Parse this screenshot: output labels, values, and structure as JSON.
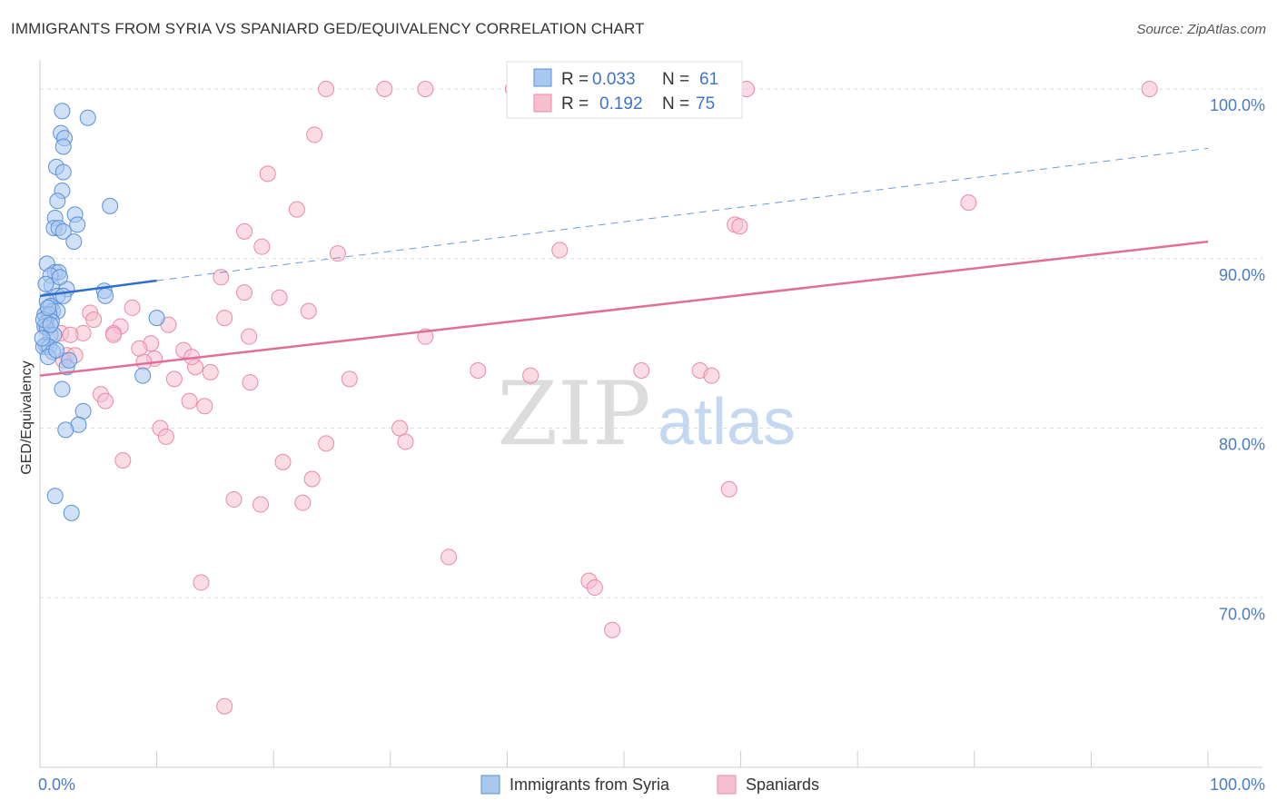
{
  "title": "IMMIGRANTS FROM SYRIA VS SPANIARD GED/EQUIVALENCY CORRELATION CHART",
  "source": "Source: ZipAtlas.com",
  "watermark": {
    "zip": "ZIP",
    "atlas": "atlas"
  },
  "colors": {
    "syria_fill": "#a9c8f0",
    "syria_stroke": "#5a8fd8",
    "syria_line": "#2f6fcc",
    "spain_fill": "#f7bfd0",
    "spain_stroke": "#e88aa8",
    "spain_line": "#e06f98",
    "tick_label": "#4a7cc7",
    "grid": "#dddddd"
  },
  "legend": {
    "r_label": "R =",
    "n_label": "N =",
    "rows": [
      {
        "r": "0.033",
        "n": "61"
      },
      {
        "r": "0.192",
        "n": "75"
      }
    ]
  },
  "chart_data": {
    "type": "scatter",
    "title": "IMMIGRANTS FROM SYRIA VS SPANIARD GED/EQUIVALENCY CORRELATION CHART",
    "xlabel": "",
    "ylabel": "GED/Equivalency",
    "xlim": [
      0,
      100
    ],
    "ylim": [
      60,
      101.5
    ],
    "x_tick_labels": [
      "0.0%",
      "100.0%"
    ],
    "y_ticks": [
      70,
      80,
      90,
      100
    ],
    "y_tick_labels": [
      "70.0%",
      "80.0%",
      "90.0%",
      "100.0%"
    ],
    "grid": true,
    "legend_position": "top-center",
    "series": [
      {
        "name": "Immigrants from Syria",
        "r": 0.033,
        "n": 61,
        "trend": {
          "x": [
            0,
            10
          ],
          "y": [
            87.8,
            88.7
          ],
          "dashed_to": [
            100,
            96.5
          ]
        },
        "points": [
          [
            1.9,
            98.7
          ],
          [
            4.1,
            98.3
          ],
          [
            1.8,
            97.4
          ],
          [
            2.1,
            97.1
          ],
          [
            2.0,
            96.6
          ],
          [
            1.4,
            95.4
          ],
          [
            2.0,
            95.1
          ],
          [
            1.9,
            94.0
          ],
          [
            1.5,
            93.4
          ],
          [
            6.0,
            93.1
          ],
          [
            3.0,
            92.6
          ],
          [
            1.3,
            92.4
          ],
          [
            3.2,
            92.0
          ],
          [
            1.2,
            91.8
          ],
          [
            1.6,
            91.8
          ],
          [
            2.0,
            91.6
          ],
          [
            2.9,
            91.0
          ],
          [
            0.6,
            89.7
          ],
          [
            1.3,
            89.2
          ],
          [
            1.6,
            89.2
          ],
          [
            0.9,
            89.0
          ],
          [
            1.0,
            88.4
          ],
          [
            0.5,
            88.5
          ],
          [
            2.3,
            88.2
          ],
          [
            5.5,
            88.1
          ],
          [
            1.5,
            87.8
          ],
          [
            2.0,
            87.8
          ],
          [
            5.6,
            87.8
          ],
          [
            0.6,
            87.5
          ],
          [
            0.9,
            87.2
          ],
          [
            1.1,
            86.9
          ],
          [
            1.5,
            86.9
          ],
          [
            0.4,
            86.7
          ],
          [
            0.8,
            86.7
          ],
          [
            1.0,
            86.3
          ],
          [
            0.5,
            86.2
          ],
          [
            0.4,
            86.0
          ],
          [
            10.0,
            86.5
          ],
          [
            0.6,
            85.9
          ],
          [
            0.9,
            85.5
          ],
          [
            1.2,
            85.5
          ],
          [
            0.5,
            84.9
          ],
          [
            0.3,
            84.8
          ],
          [
            0.8,
            84.8
          ],
          [
            1.1,
            84.5
          ],
          [
            0.7,
            84.2
          ],
          [
            2.3,
            83.6
          ],
          [
            8.8,
            83.1
          ],
          [
            1.9,
            82.3
          ],
          [
            3.7,
            81.0
          ],
          [
            3.3,
            80.2
          ],
          [
            2.2,
            79.9
          ],
          [
            1.3,
            76.0
          ],
          [
            2.7,
            75.0
          ],
          [
            0.3,
            86.4
          ],
          [
            1.4,
            84.6
          ],
          [
            0.7,
            87.1
          ],
          [
            1.7,
            88.9
          ],
          [
            0.2,
            85.3
          ],
          [
            2.5,
            84.0
          ],
          [
            0.9,
            86.1
          ]
        ]
      },
      {
        "name": "Spaniards",
        "r": 0.192,
        "n": 75,
        "trend": {
          "x": [
            0,
            100
          ],
          "y": [
            83.1,
            91.0
          ]
        },
        "points": [
          [
            24.5,
            100.0
          ],
          [
            29.5,
            100.0
          ],
          [
            33.0,
            100.0
          ],
          [
            40.5,
            100.0
          ],
          [
            49.0,
            100.0
          ],
          [
            95.0,
            100.0
          ],
          [
            23.5,
            97.3
          ],
          [
            19.5,
            95.0
          ],
          [
            59.5,
            92.0
          ],
          [
            22.0,
            92.9
          ],
          [
            60.5,
            100.0
          ],
          [
            19.0,
            90.7
          ],
          [
            17.5,
            91.6
          ],
          [
            44.5,
            90.5
          ],
          [
            25.5,
            90.3
          ],
          [
            15.5,
            88.9
          ],
          [
            17.5,
            88.0
          ],
          [
            20.5,
            87.7
          ],
          [
            23.0,
            86.9
          ],
          [
            7.9,
            87.1
          ],
          [
            4.3,
            86.8
          ],
          [
            11.0,
            86.1
          ],
          [
            15.8,
            86.5
          ],
          [
            4.6,
            86.4
          ],
          [
            6.9,
            86.0
          ],
          [
            6.3,
            85.6
          ],
          [
            1.8,
            85.6
          ],
          [
            3.7,
            85.6
          ],
          [
            2.6,
            85.5
          ],
          [
            17.9,
            85.4
          ],
          [
            33.0,
            85.4
          ],
          [
            9.5,
            85.0
          ],
          [
            8.5,
            84.7
          ],
          [
            12.3,
            84.6
          ],
          [
            2.3,
            84.3
          ],
          [
            3.0,
            84.3
          ],
          [
            9.8,
            84.1
          ],
          [
            8.9,
            83.9
          ],
          [
            13.3,
            83.6
          ],
          [
            14.6,
            83.3
          ],
          [
            37.5,
            83.4
          ],
          [
            51.5,
            83.4
          ],
          [
            26.5,
            82.9
          ],
          [
            42.0,
            83.1
          ],
          [
            56.5,
            83.4
          ],
          [
            57.5,
            83.1
          ],
          [
            11.5,
            82.9
          ],
          [
            18.0,
            82.7
          ],
          [
            5.2,
            82.0
          ],
          [
            5.6,
            81.6
          ],
          [
            12.8,
            81.6
          ],
          [
            14.1,
            81.3
          ],
          [
            30.8,
            80.0
          ],
          [
            10.3,
            80.0
          ],
          [
            10.8,
            79.5
          ],
          [
            31.3,
            79.2
          ],
          [
            24.5,
            79.1
          ],
          [
            7.1,
            78.1
          ],
          [
            20.8,
            78.0
          ],
          [
            23.3,
            77.0
          ],
          [
            16.6,
            75.8
          ],
          [
            18.9,
            75.5
          ],
          [
            22.5,
            75.6
          ],
          [
            59.0,
            76.4
          ],
          [
            35.0,
            72.4
          ],
          [
            47.0,
            71.0
          ],
          [
            47.5,
            70.6
          ],
          [
            49.0,
            68.1
          ],
          [
            13.8,
            70.9
          ],
          [
            15.8,
            63.6
          ],
          [
            79.5,
            93.3
          ],
          [
            59.9,
            91.9
          ],
          [
            13.0,
            84.2
          ],
          [
            6.3,
            85.5
          ],
          [
            2.0,
            84.0
          ]
        ]
      }
    ]
  },
  "bottom_legend": [
    "Immigrants from Syria",
    "Spaniards"
  ]
}
